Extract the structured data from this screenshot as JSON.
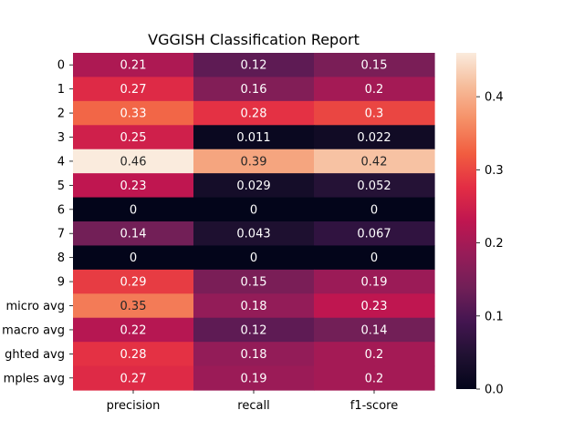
{
  "chart_data": {
    "type": "heatmap",
    "title": "VGGISH Classification Report",
    "xlabel": "",
    "ylabel": "",
    "columns": [
      "precision",
      "recall",
      "f1-score"
    ],
    "rows": [
      "0",
      "1",
      "2",
      "3",
      "4",
      "5",
      "6",
      "7",
      "8",
      "9",
      "micro avg",
      "macro avg",
      "weighted avg",
      "samples avg"
    ],
    "row_tick_labels_visible": [
      "0",
      "1",
      "2",
      "3",
      "4",
      "5",
      "6",
      "7",
      "8",
      "9",
      "micro avg",
      "macro avg",
      "ghted avg",
      "mples avg"
    ],
    "values": [
      [
        0.21,
        0.12,
        0.15
      ],
      [
        0.27,
        0.16,
        0.2
      ],
      [
        0.33,
        0.28,
        0.3
      ],
      [
        0.25,
        0.011,
        0.022
      ],
      [
        0.46,
        0.39,
        0.42
      ],
      [
        0.23,
        0.029,
        0.052
      ],
      [
        0,
        0,
        0
      ],
      [
        0.14,
        0.043,
        0.067
      ],
      [
        0,
        0,
        0
      ],
      [
        0.29,
        0.15,
        0.19
      ],
      [
        0.35,
        0.18,
        0.23
      ],
      [
        0.22,
        0.12,
        0.14
      ],
      [
        0.28,
        0.18,
        0.2
      ],
      [
        0.27,
        0.19,
        0.2
      ]
    ],
    "labels": [
      [
        "0.21",
        "0.12",
        "0.15"
      ],
      [
        "0.27",
        "0.16",
        "0.2"
      ],
      [
        "0.33",
        "0.28",
        "0.3"
      ],
      [
        "0.25",
        "0.011",
        "0.022"
      ],
      [
        "0.46",
        "0.39",
        "0.42"
      ],
      [
        "0.23",
        "0.029",
        "0.052"
      ],
      [
        "0",
        "0",
        "0"
      ],
      [
        "0.14",
        "0.043",
        "0.067"
      ],
      [
        "0",
        "0",
        "0"
      ],
      [
        "0.29",
        "0.15",
        "0.19"
      ],
      [
        "0.35",
        "0.18",
        "0.23"
      ],
      [
        "0.22",
        "0.12",
        "0.14"
      ],
      [
        "0.28",
        "0.18",
        "0.2"
      ],
      [
        "0.27",
        "0.19",
        "0.2"
      ]
    ],
    "colormap": "rocket",
    "colorbar": {
      "range": [
        0,
        0.46
      ],
      "ticks": [
        0.0,
        0.1,
        0.2,
        0.3,
        0.4
      ],
      "tick_labels": [
        "0.0",
        "0.1",
        "0.2",
        "0.3",
        "0.4"
      ]
    },
    "grid": false,
    "legend": "colorbar-right"
  }
}
